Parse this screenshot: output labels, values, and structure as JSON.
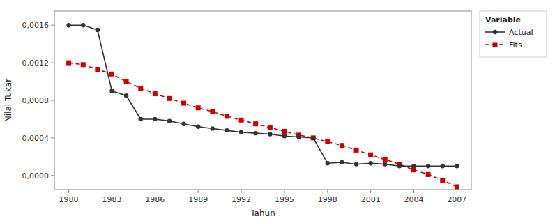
{
  "chart_data": {
    "type": "line",
    "x_label": "Tahun",
    "y_label": "Nilai Tukar",
    "legend_title": "Variable",
    "legend": "right",
    "grid": false,
    "x": [
      1980,
      1981,
      1982,
      1983,
      1984,
      1985,
      1986,
      1987,
      1988,
      1989,
      1990,
      1991,
      1992,
      1993,
      1994,
      1995,
      1996,
      1997,
      1998,
      1999,
      2000,
      2001,
      2002,
      2003,
      2004,
      2005,
      2006,
      2007
    ],
    "series": [
      {
        "name": "Fits",
        "color": "#cc0000",
        "marker": "square",
        "line_style": "dashed",
        "values": [
          0.0012,
          0.00118,
          0.00113,
          0.00108,
          0.001,
          0.00093,
          0.00087,
          0.00082,
          0.00077,
          0.00072,
          0.00068,
          0.00063,
          0.00059,
          0.00055,
          0.00051,
          0.00047,
          0.00043,
          0.0004,
          0.00036,
          0.00032,
          0.00027,
          0.00022,
          0.00017,
          0.00012,
          6e-05,
          1e-05,
          -5e-05,
          -0.00012
        ]
      },
      {
        "name": "Actual",
        "color": "#333333",
        "marker": "circle",
        "line_style": "solid",
        "values": [
          0.0016,
          0.0016,
          0.00155,
          0.0009,
          0.00085,
          0.0006,
          0.0006,
          0.00058,
          0.00055,
          0.00052,
          0.0005,
          0.00048,
          0.00046,
          0.00045,
          0.00044,
          0.00042,
          0.00041,
          0.0004,
          0.00013,
          0.00014,
          0.00012,
          0.00013,
          0.00012,
          0.0001,
          0.0001,
          0.0001,
          0.0001,
          0.0001
        ]
      }
    ],
    "xlim": [
      1979,
      2008
    ],
    "xticks": [
      1980,
      1983,
      1986,
      1989,
      1992,
      1995,
      1998,
      2001,
      2004,
      2007
    ],
    "ylim": [
      -0.00015,
      0.00175
    ],
    "yticks": [
      {
        "value": 0.0,
        "label": "0,0000"
      },
      {
        "value": 0.0004,
        "label": "0,0004"
      },
      {
        "value": 0.0008,
        "label": "0,0008"
      },
      {
        "value": 0.0012,
        "label": "0,0012"
      },
      {
        "value": 0.0016,
        "label": "0,0016"
      }
    ]
  }
}
